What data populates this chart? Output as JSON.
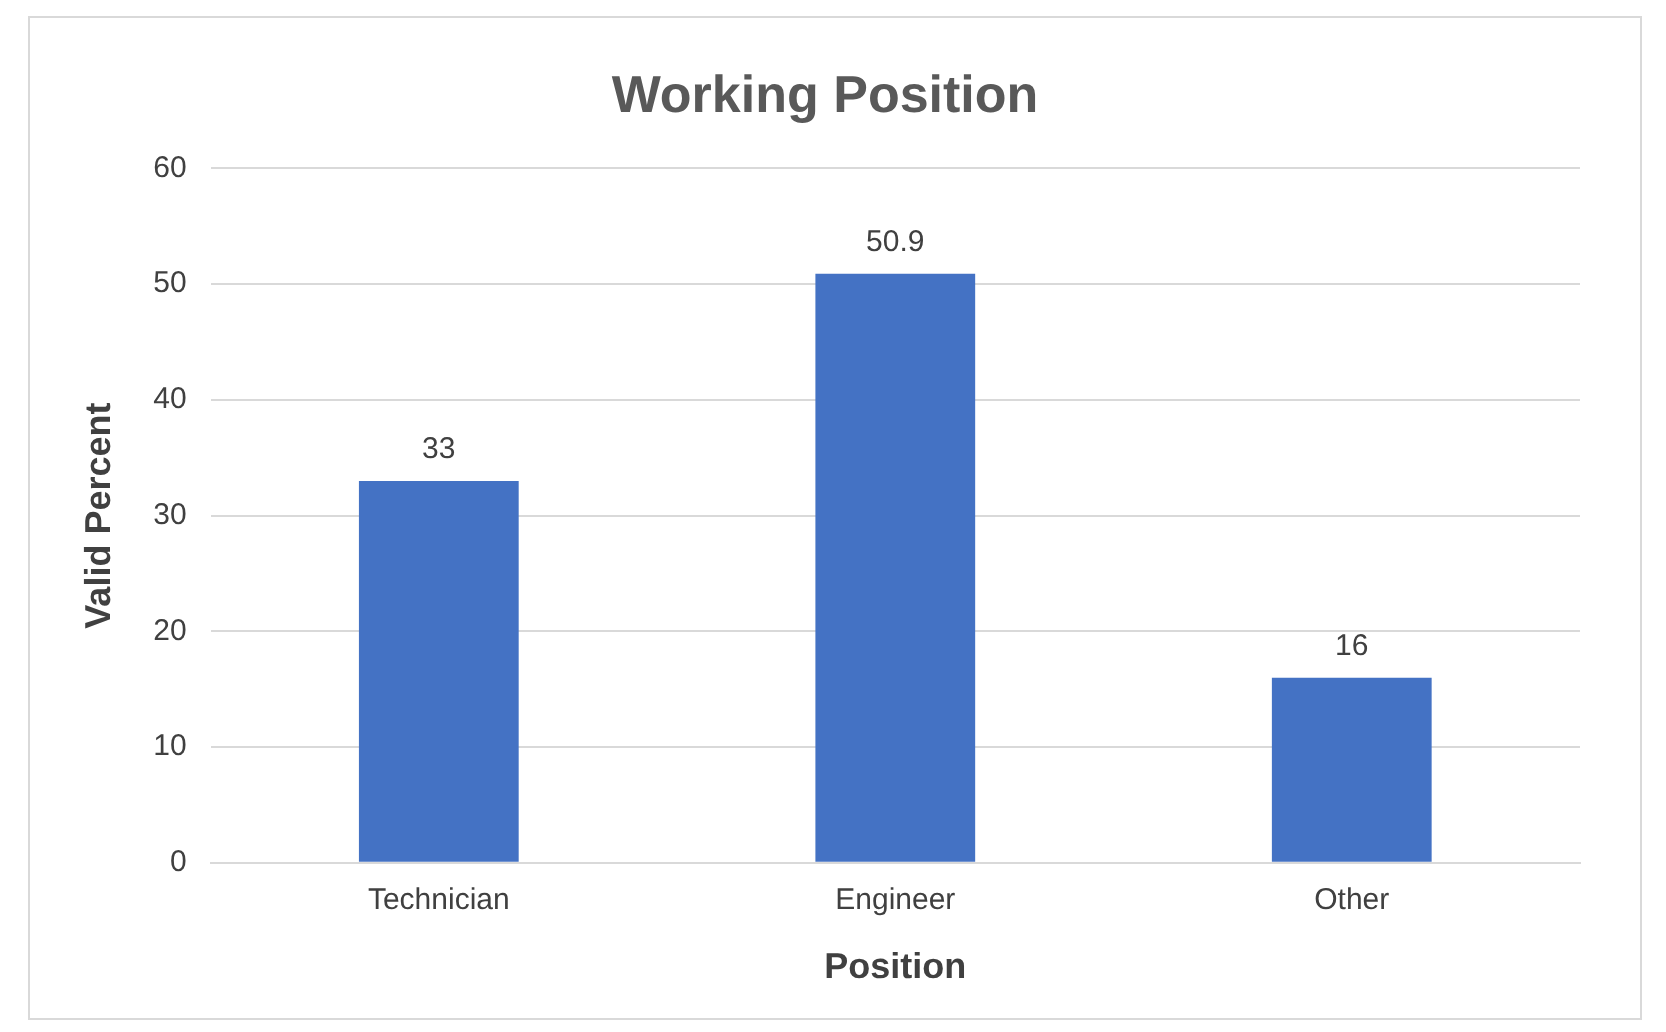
{
  "chart_data": {
    "type": "bar",
    "title": "Working Position",
    "xlabel": "Position",
    "ylabel": "Valid Percent",
    "categories": [
      "Technician",
      "Engineer",
      "Other"
    ],
    "values": [
      33,
      50.9,
      16
    ],
    "color": "#4472c4",
    "ylim": [
      0,
      60
    ],
    "yticks": [
      0,
      10,
      20,
      30,
      40,
      50,
      60
    ],
    "grid": "y",
    "data_labels": true
  }
}
